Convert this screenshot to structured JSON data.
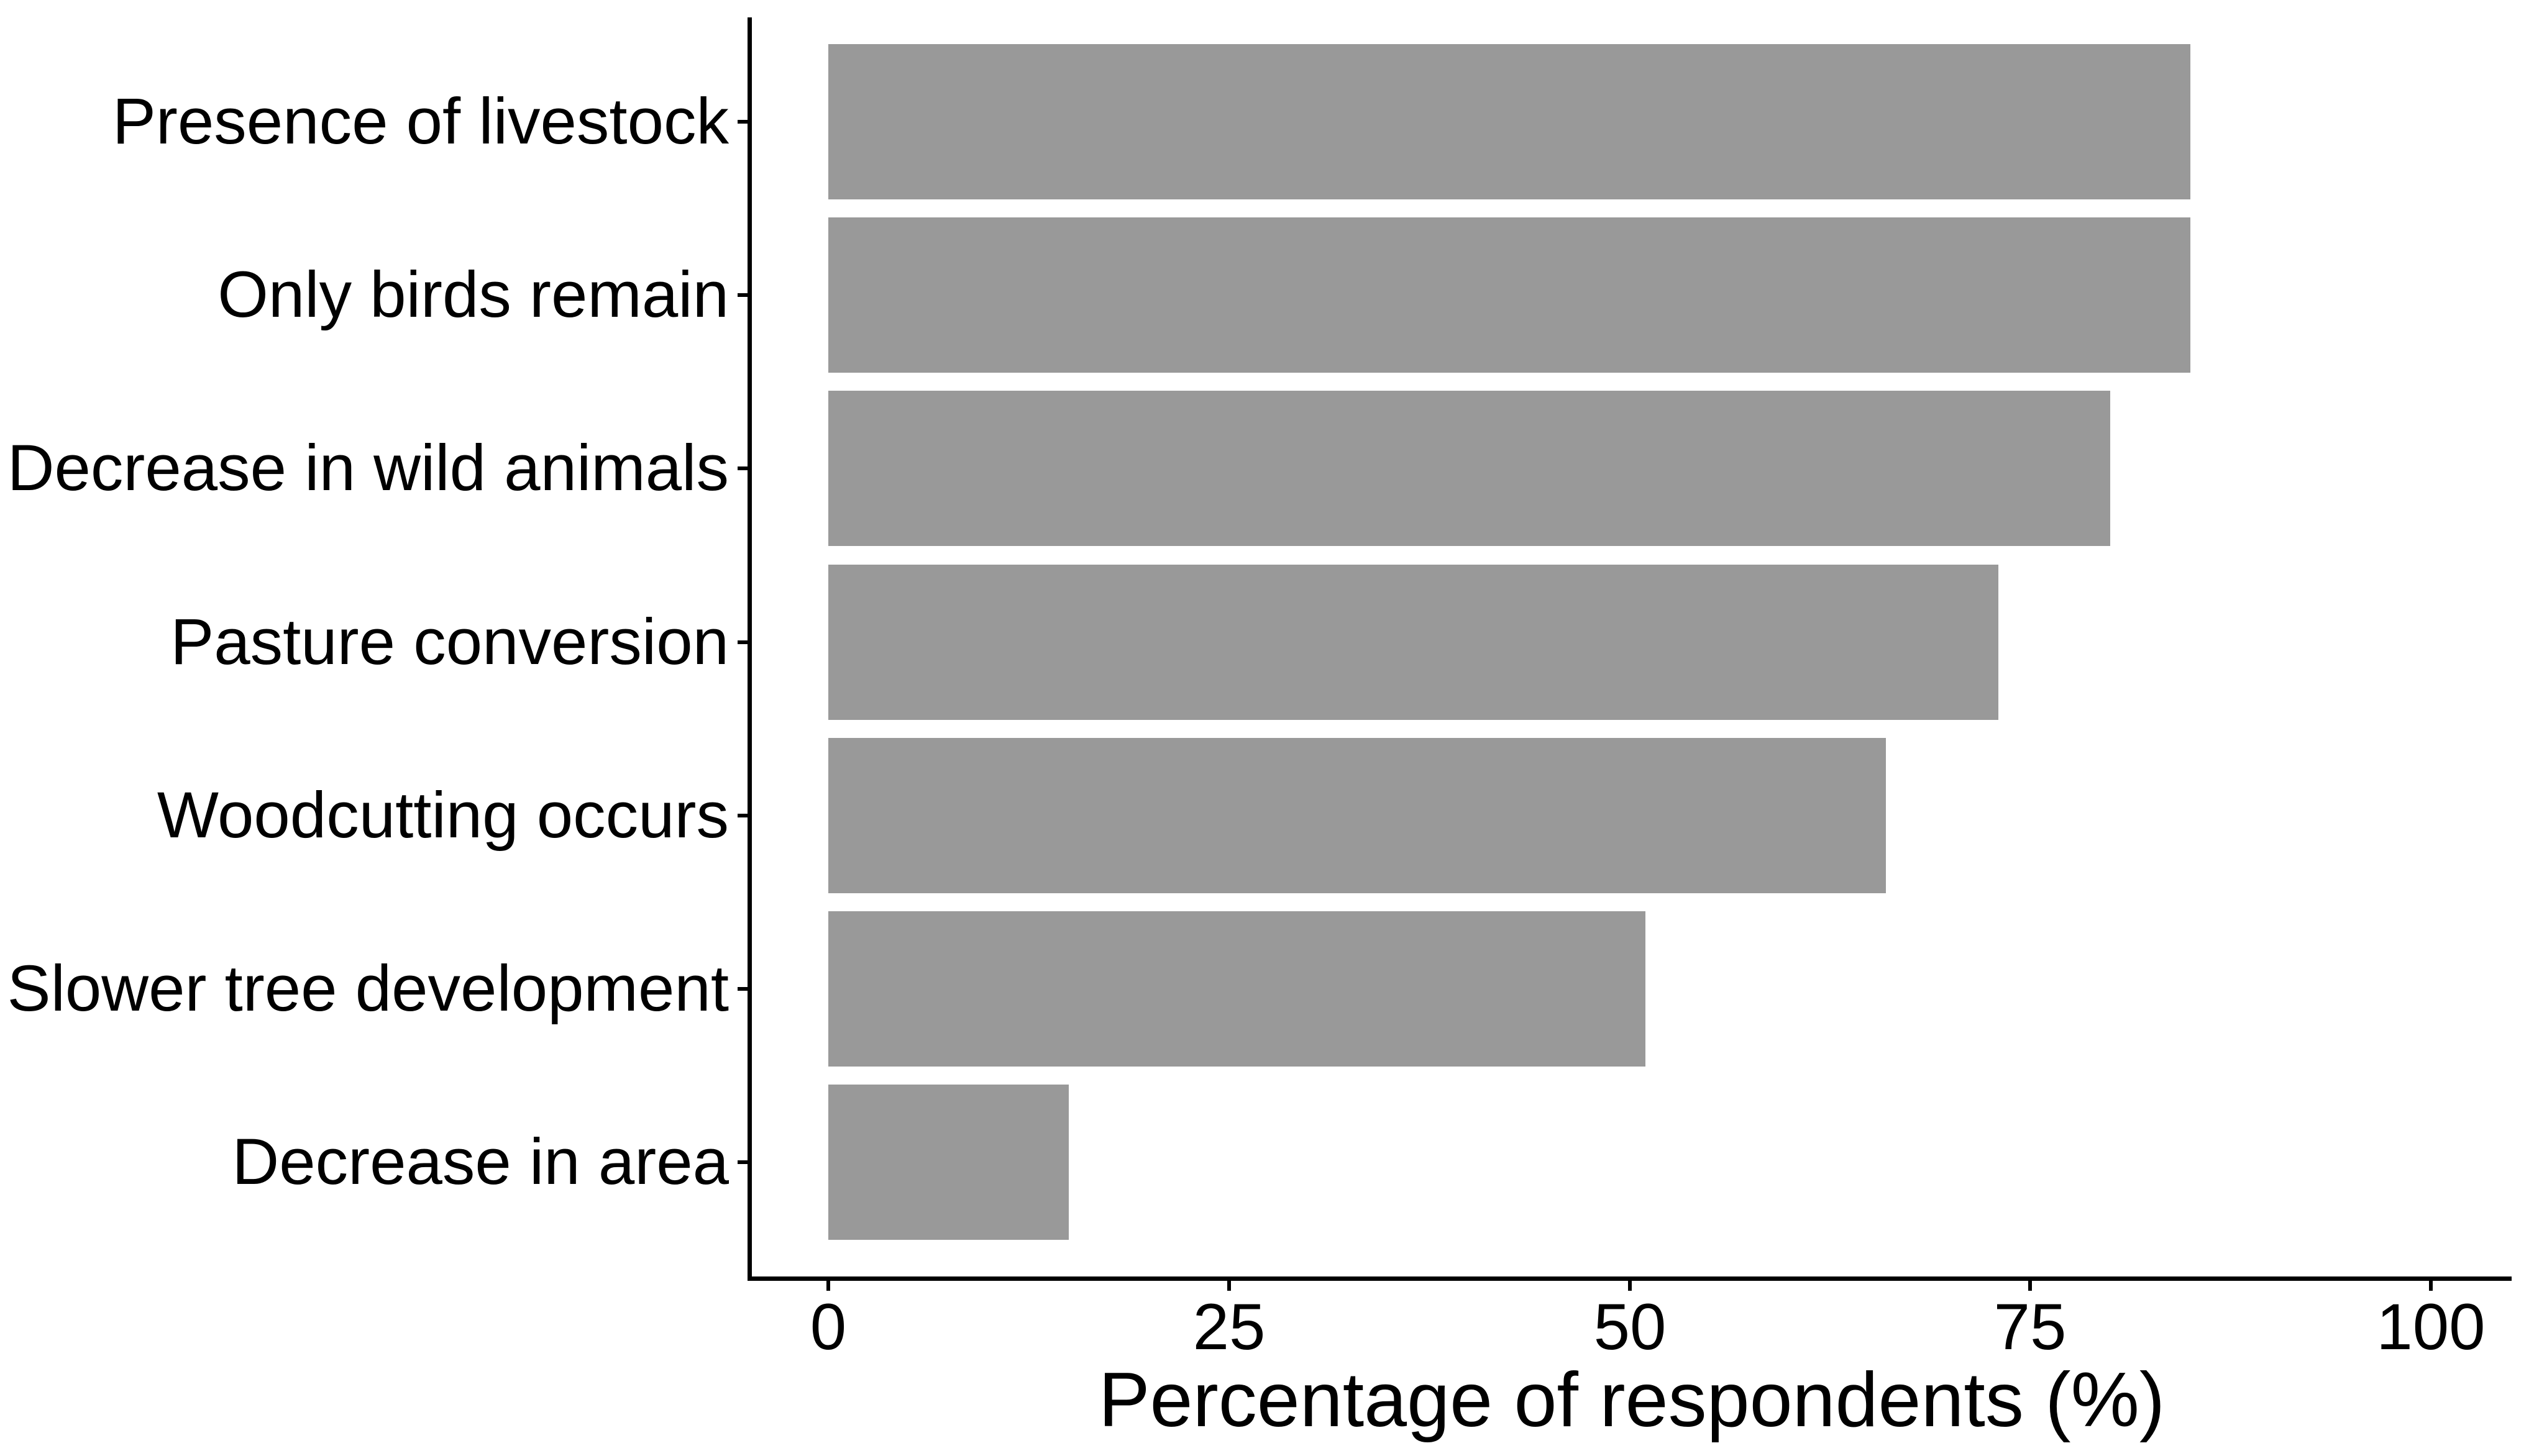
{
  "chart_data": {
    "type": "bar",
    "orientation": "horizontal",
    "title": "",
    "xlabel": "Percentage of respondents (%)",
    "ylabel": "",
    "categories": [
      "Presence of livestock",
      "Only birds remain",
      "Decrease in wild animals",
      "Pasture conversion",
      "Woodcutting occurs",
      "Slower tree development",
      "Decrease in area"
    ],
    "values": [
      85,
      85,
      80,
      73,
      66,
      51,
      15
    ],
    "x_ticks": [
      0,
      25,
      50,
      75,
      100
    ],
    "xlim": [
      0,
      105
    ],
    "grid": false,
    "legend": false,
    "bar_color": "#999999",
    "axis_color": "#000000",
    "text_color": "#000000",
    "background_color": "#ffffff"
  }
}
